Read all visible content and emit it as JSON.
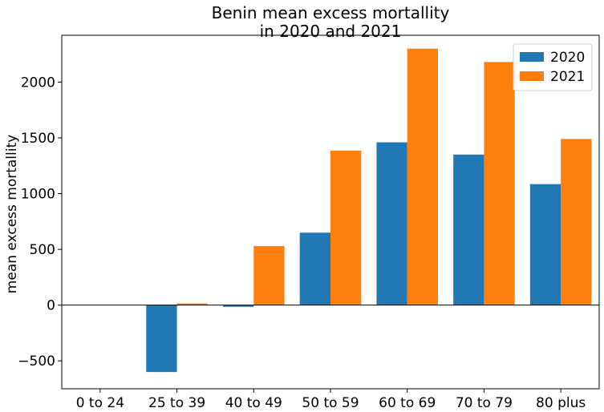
{
  "chart_data": {
    "type": "bar",
    "title": "Benin mean excess mortallity\nin 2020 and 2021",
    "xlabel": "",
    "ylabel": "mean excess mortallity",
    "categories": [
      "0 to 24",
      "25 to 39",
      "40 to 49",
      "50 to 59",
      "60 to 69",
      "70 to 79",
      "80 plus"
    ],
    "series": [
      {
        "name": "2020",
        "color": "#1f77b4",
        "values": [
          0,
          -600,
          -15,
          650,
          1460,
          1350,
          1085
        ]
      },
      {
        "name": "2021",
        "color": "#ff7f0e",
        "values": [
          0,
          15,
          530,
          1385,
          2300,
          2180,
          1490
        ]
      }
    ],
    "ylim": [
      -750,
      2420
    ],
    "yticks": [
      -500,
      0,
      500,
      1000,
      1500,
      2000
    ],
    "ytick_labels": [
      "−500",
      "0",
      "500",
      "1000",
      "1500",
      "2000"
    ],
    "zero_line": true,
    "grid": false,
    "legend_position": "top-right"
  }
}
